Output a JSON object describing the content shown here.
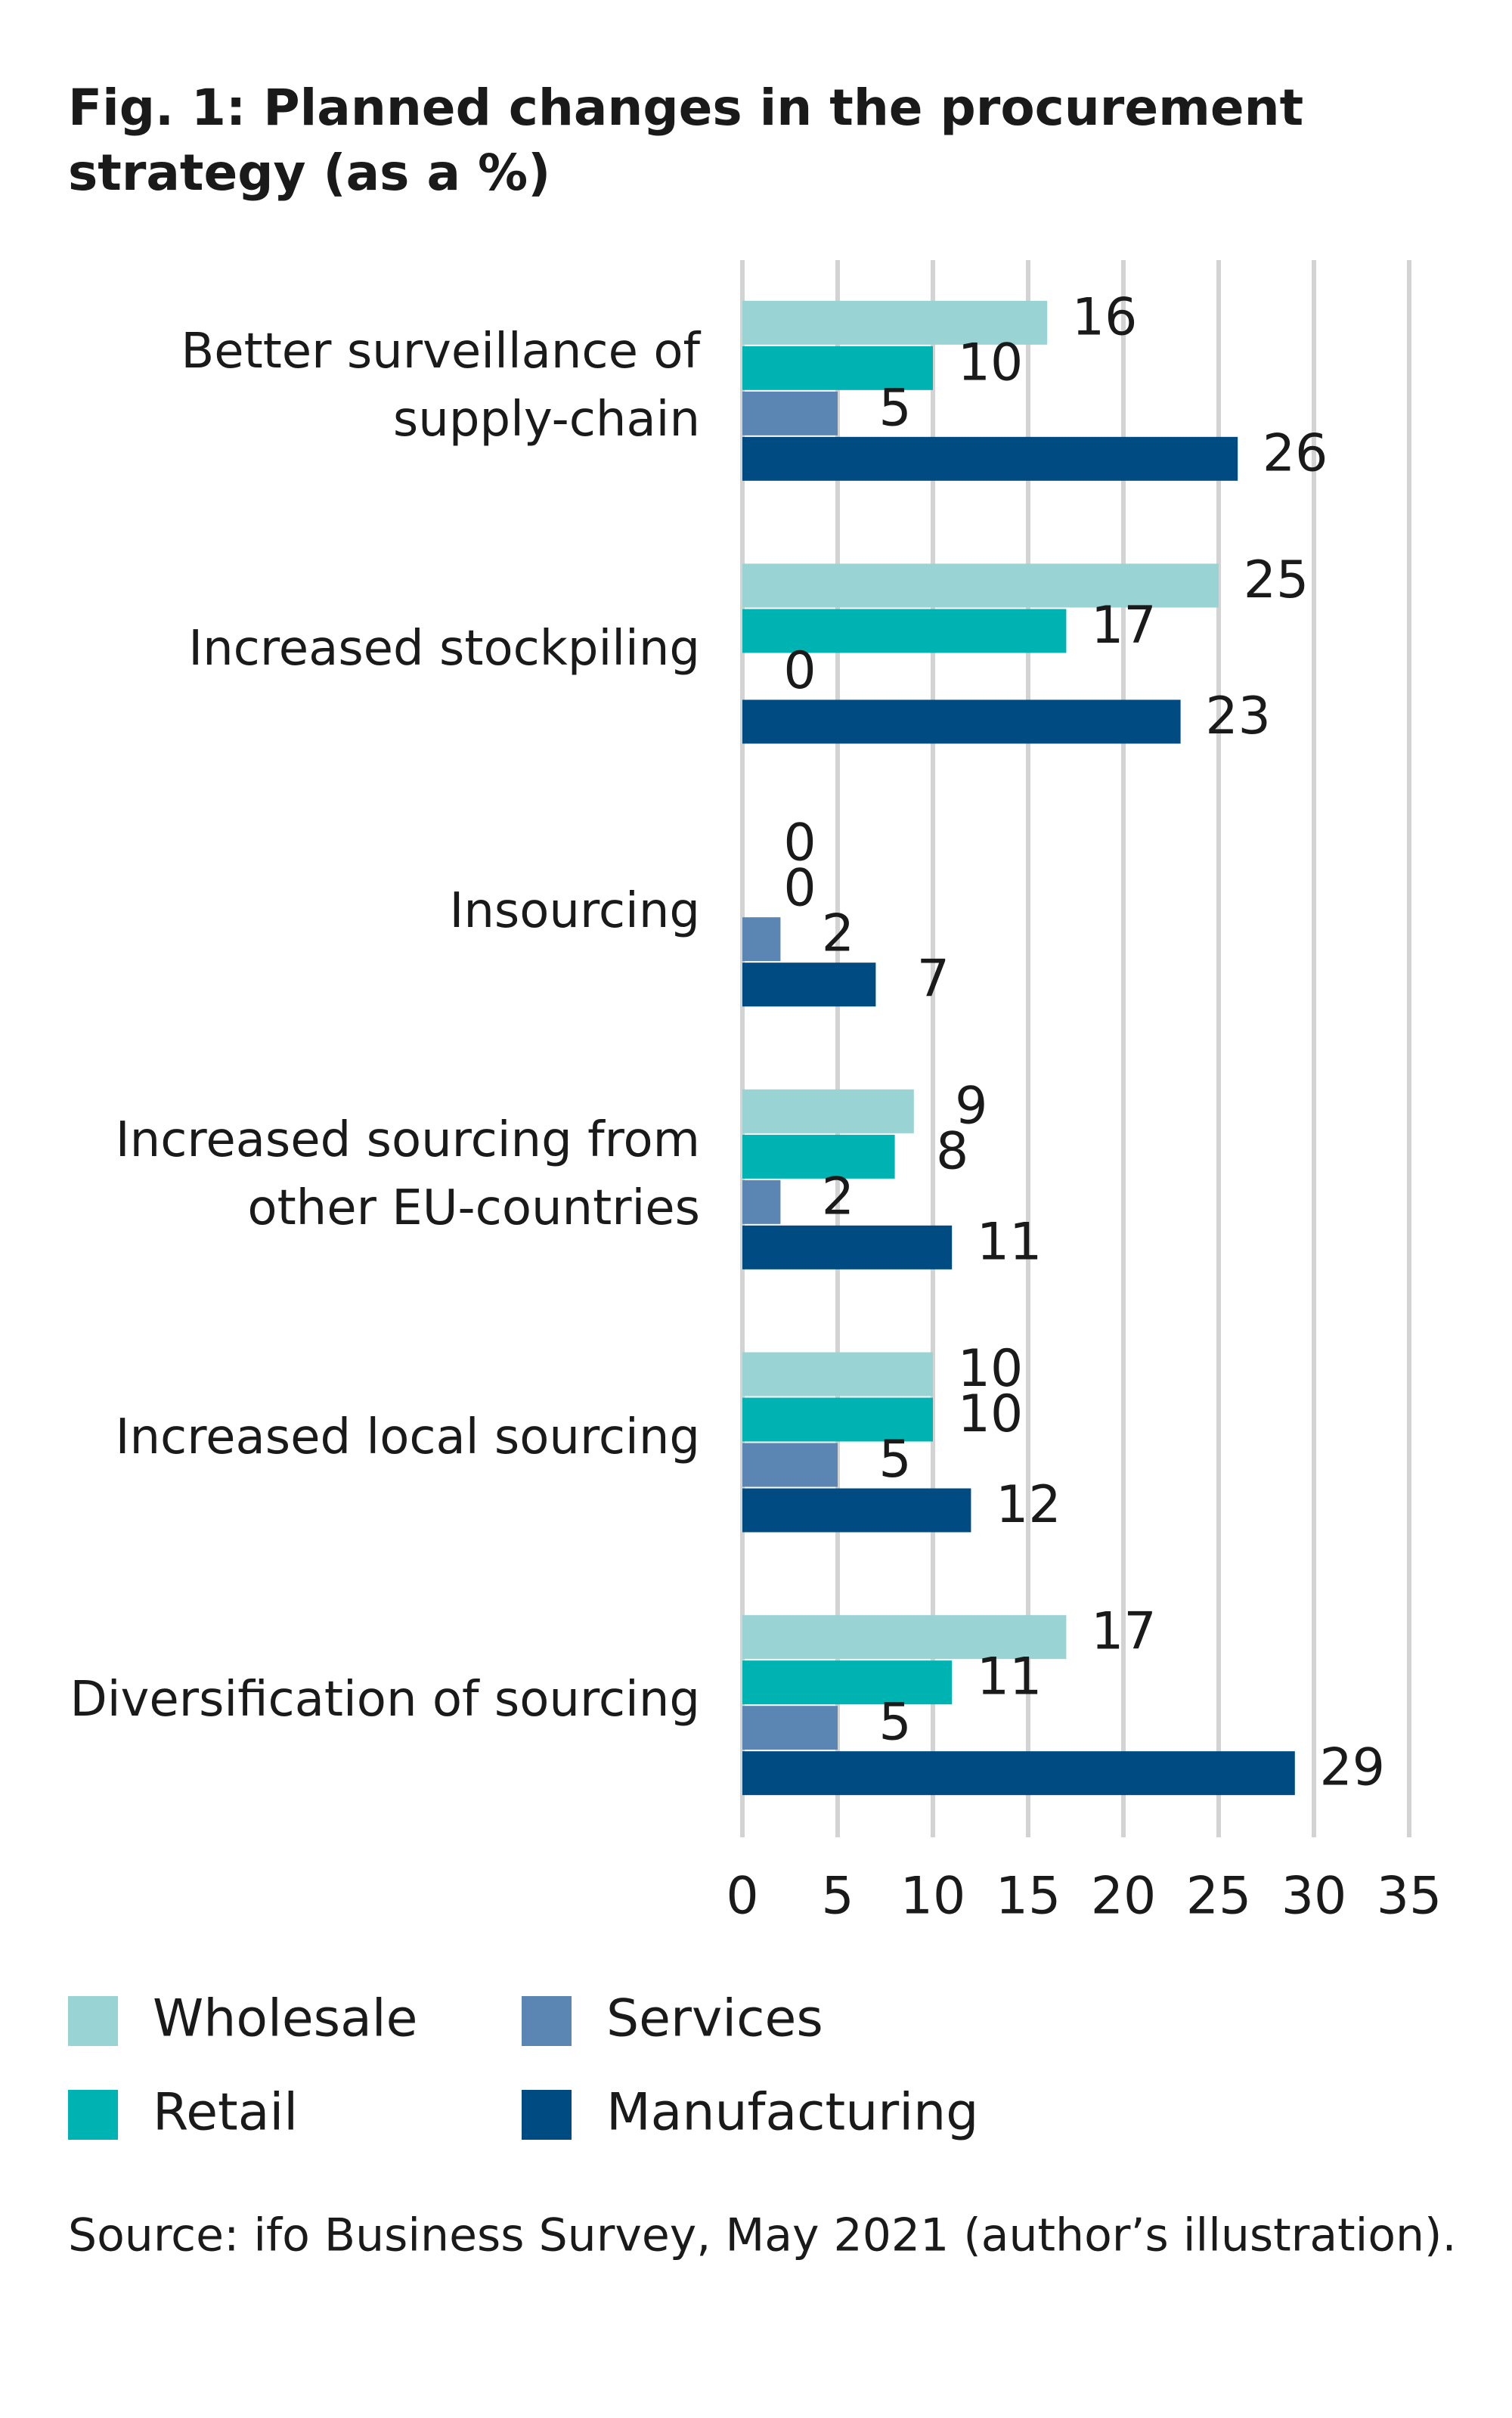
{
  "chart_data": {
    "type": "bar",
    "orientation": "horizontal",
    "title": "Fig. 1: Planned changes in the procurement strategy (as a %)",
    "categories": [
      "Better surveillance of supply-chain",
      "Increased stockpiling",
      "Insourcing",
      "Increased sourcing from other EU-countries",
      "Increased local sourcing",
      "Diversification of sourcing"
    ],
    "series": [
      {
        "name": "Wholesale",
        "color": "#99d3d4",
        "values": [
          16,
          25,
          0,
          9,
          10,
          17
        ]
      },
      {
        "name": "Retail",
        "color": "#00b3b3",
        "values": [
          10,
          17,
          0,
          8,
          10,
          11
        ]
      },
      {
        "name": "Services",
        "color": "#5b86b4",
        "values": [
          5,
          0,
          2,
          2,
          5,
          5
        ]
      },
      {
        "name": "Manufacturing",
        "color": "#004c82",
        "values": [
          26,
          23,
          7,
          11,
          12,
          29
        ]
      }
    ],
    "xlim": [
      0,
      35
    ],
    "xticks": [
      0,
      5,
      10,
      15,
      20,
      25,
      30,
      35
    ],
    "grid": true,
    "source": "Source: ifo Business Survey, May 2021 (author’s illustration)."
  }
}
